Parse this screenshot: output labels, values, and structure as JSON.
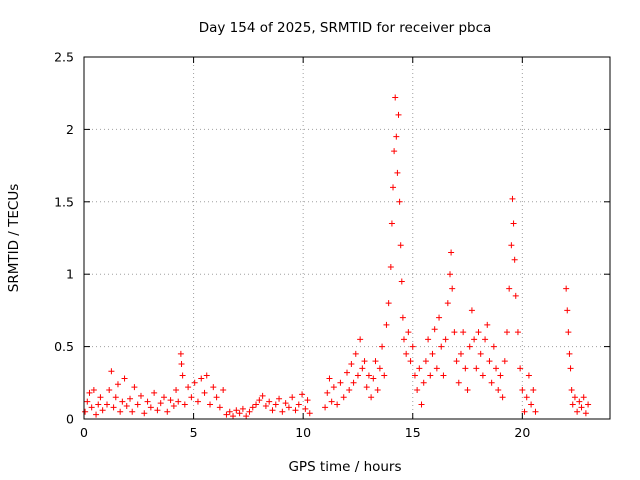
{
  "chart_data": {
    "type": "scatter",
    "title": "Day 154 of 2025, SRMTID for receiver pbca",
    "xlabel": "GPS time / hours",
    "ylabel": "SRMTID / TECUs",
    "xlim": [
      0,
      24
    ],
    "ylim": [
      0,
      2.5
    ],
    "xticks": [
      0,
      5,
      10,
      15,
      20
    ],
    "xtick_labels": [
      "0",
      "5",
      "10",
      "15",
      "20"
    ],
    "yticks": [
      0,
      0.5,
      1,
      1.5,
      2,
      2.5
    ],
    "ytick_labels": [
      "0",
      "0.5",
      "1",
      "1.5",
      "2",
      "2.5"
    ],
    "grid": true,
    "marker": "+",
    "series_color": "#ff0000",
    "series": [
      {
        "name": "SRMTID",
        "points": [
          [
            0.05,
            0.05
          ],
          [
            0.15,
            0.12
          ],
          [
            0.25,
            0.18
          ],
          [
            0.35,
            0.08
          ],
          [
            0.45,
            0.2
          ],
          [
            0.55,
            0.03
          ],
          [
            0.65,
            0.1
          ],
          [
            0.75,
            0.15
          ],
          [
            0.85,
            0.06
          ],
          [
            1.05,
            0.1
          ],
          [
            1.15,
            0.2
          ],
          [
            1.25,
            0.33
          ],
          [
            1.35,
            0.08
          ],
          [
            1.45,
            0.15
          ],
          [
            1.55,
            0.24
          ],
          [
            1.65,
            0.05
          ],
          [
            1.75,
            0.12
          ],
          [
            1.85,
            0.28
          ],
          [
            1.95,
            0.09
          ],
          [
            2.1,
            0.14
          ],
          [
            2.2,
            0.05
          ],
          [
            2.3,
            0.22
          ],
          [
            2.45,
            0.1
          ],
          [
            2.6,
            0.16
          ],
          [
            2.75,
            0.04
          ],
          [
            2.9,
            0.12
          ],
          [
            3.05,
            0.08
          ],
          [
            3.2,
            0.18
          ],
          [
            3.35,
            0.06
          ],
          [
            3.5,
            0.11
          ],
          [
            3.65,
            0.15
          ],
          [
            3.8,
            0.05
          ],
          [
            3.95,
            0.13
          ],
          [
            4.1,
            0.09
          ],
          [
            4.2,
            0.2
          ],
          [
            4.3,
            0.12
          ],
          [
            4.42,
            0.45
          ],
          [
            4.45,
            0.38
          ],
          [
            4.5,
            0.3
          ],
          [
            4.6,
            0.1
          ],
          [
            4.75,
            0.22
          ],
          [
            4.9,
            0.15
          ],
          [
            5.05,
            0.25
          ],
          [
            5.2,
            0.12
          ],
          [
            5.35,
            0.28
          ],
          [
            5.5,
            0.18
          ],
          [
            5.6,
            0.3
          ],
          [
            5.75,
            0.1
          ],
          [
            5.9,
            0.22
          ],
          [
            6.05,
            0.15
          ],
          [
            6.2,
            0.08
          ],
          [
            6.35,
            0.2
          ],
          [
            6.5,
            0.03
          ],
          [
            6.65,
            0.05
          ],
          [
            6.8,
            0.02
          ],
          [
            6.95,
            0.06
          ],
          [
            7.1,
            0.04
          ],
          [
            7.25,
            0.07
          ],
          [
            7.4,
            0.02
          ],
          [
            7.55,
            0.05
          ],
          [
            7.7,
            0.08
          ],
          [
            7.85,
            0.1
          ],
          [
            8.0,
            0.13
          ],
          [
            8.15,
            0.16
          ],
          [
            8.3,
            0.09
          ],
          [
            8.45,
            0.12
          ],
          [
            8.6,
            0.06
          ],
          [
            8.75,
            0.1
          ],
          [
            8.9,
            0.14
          ],
          [
            9.05,
            0.05
          ],
          [
            9.2,
            0.11
          ],
          [
            9.35,
            0.08
          ],
          [
            9.5,
            0.15
          ],
          [
            9.65,
            0.06
          ],
          [
            9.8,
            0.1
          ],
          [
            9.95,
            0.17
          ],
          [
            10.1,
            0.07
          ],
          [
            10.2,
            0.13
          ],
          [
            10.3,
            0.04
          ],
          [
            11.0,
            0.08
          ],
          [
            11.1,
            0.18
          ],
          [
            11.2,
            0.28
          ],
          [
            11.3,
            0.12
          ],
          [
            11.4,
            0.22
          ],
          [
            11.55,
            0.1
          ],
          [
            11.7,
            0.25
          ],
          [
            11.85,
            0.15
          ],
          [
            12.0,
            0.32
          ],
          [
            12.1,
            0.2
          ],
          [
            12.2,
            0.38
          ],
          [
            12.3,
            0.25
          ],
          [
            12.4,
            0.45
          ],
          [
            12.5,
            0.3
          ],
          [
            12.6,
            0.55
          ],
          [
            12.7,
            0.35
          ],
          [
            12.8,
            0.4
          ],
          [
            12.9,
            0.22
          ],
          [
            13.0,
            0.3
          ],
          [
            13.1,
            0.15
          ],
          [
            13.2,
            0.28
          ],
          [
            13.3,
            0.4
          ],
          [
            13.4,
            0.2
          ],
          [
            13.5,
            0.35
          ],
          [
            13.6,
            0.5
          ],
          [
            13.7,
            0.3
          ],
          [
            13.8,
            0.65
          ],
          [
            13.9,
            0.8
          ],
          [
            14.0,
            1.05
          ],
          [
            14.05,
            1.35
          ],
          [
            14.1,
            1.6
          ],
          [
            14.15,
            1.85
          ],
          [
            14.2,
            2.22
          ],
          [
            14.25,
            1.95
          ],
          [
            14.3,
            1.7
          ],
          [
            14.35,
            2.1
          ],
          [
            14.4,
            1.5
          ],
          [
            14.45,
            1.2
          ],
          [
            14.5,
            0.95
          ],
          [
            14.55,
            0.7
          ],
          [
            14.6,
            0.55
          ],
          [
            14.7,
            0.45
          ],
          [
            14.8,
            0.6
          ],
          [
            14.9,
            0.4
          ],
          [
            15.0,
            0.5
          ],
          [
            15.1,
            0.3
          ],
          [
            15.2,
            0.2
          ],
          [
            15.3,
            0.35
          ],
          [
            15.4,
            0.1
          ],
          [
            15.5,
            0.25
          ],
          [
            15.6,
            0.4
          ],
          [
            15.7,
            0.55
          ],
          [
            15.8,
            0.3
          ],
          [
            15.9,
            0.45
          ],
          [
            16.0,
            0.62
          ],
          [
            16.1,
            0.35
          ],
          [
            16.2,
            0.7
          ],
          [
            16.3,
            0.5
          ],
          [
            16.4,
            0.3
          ],
          [
            16.5,
            0.55
          ],
          [
            16.6,
            0.8
          ],
          [
            16.7,
            1.0
          ],
          [
            16.75,
            1.15
          ],
          [
            16.8,
            0.9
          ],
          [
            16.9,
            0.6
          ],
          [
            17.0,
            0.4
          ],
          [
            17.1,
            0.25
          ],
          [
            17.2,
            0.45
          ],
          [
            17.3,
            0.6
          ],
          [
            17.4,
            0.35
          ],
          [
            17.5,
            0.2
          ],
          [
            17.6,
            0.5
          ],
          [
            17.7,
            0.75
          ],
          [
            17.8,
            0.55
          ],
          [
            17.9,
            0.35
          ],
          [
            18.0,
            0.6
          ],
          [
            18.1,
            0.45
          ],
          [
            18.2,
            0.3
          ],
          [
            18.3,
            0.55
          ],
          [
            18.4,
            0.65
          ],
          [
            18.5,
            0.4
          ],
          [
            18.6,
            0.25
          ],
          [
            18.7,
            0.5
          ],
          [
            18.8,
            0.35
          ],
          [
            18.9,
            0.2
          ],
          [
            19.0,
            0.3
          ],
          [
            19.1,
            0.15
          ],
          [
            19.2,
            0.4
          ],
          [
            19.3,
            0.6
          ],
          [
            19.4,
            0.9
          ],
          [
            19.5,
            1.2
          ],
          [
            19.55,
            1.52
          ],
          [
            19.6,
            1.35
          ],
          [
            19.65,
            1.1
          ],
          [
            19.7,
            0.85
          ],
          [
            19.8,
            0.6
          ],
          [
            19.9,
            0.35
          ],
          [
            20.0,
            0.2
          ],
          [
            20.1,
            0.05
          ],
          [
            20.2,
            0.15
          ],
          [
            20.3,
            0.3
          ],
          [
            20.4,
            0.1
          ],
          [
            20.5,
            0.2
          ],
          [
            20.6,
            0.05
          ],
          [
            22.0,
            0.9
          ],
          [
            22.05,
            0.75
          ],
          [
            22.1,
            0.6
          ],
          [
            22.15,
            0.45
          ],
          [
            22.2,
            0.35
          ],
          [
            22.25,
            0.2
          ],
          [
            22.3,
            0.1
          ],
          [
            22.4,
            0.15
          ],
          [
            22.5,
            0.05
          ],
          [
            22.6,
            0.12
          ],
          [
            22.7,
            0.08
          ],
          [
            22.8,
            0.15
          ],
          [
            22.9,
            0.04
          ],
          [
            23.0,
            0.1
          ]
        ]
      }
    ]
  }
}
